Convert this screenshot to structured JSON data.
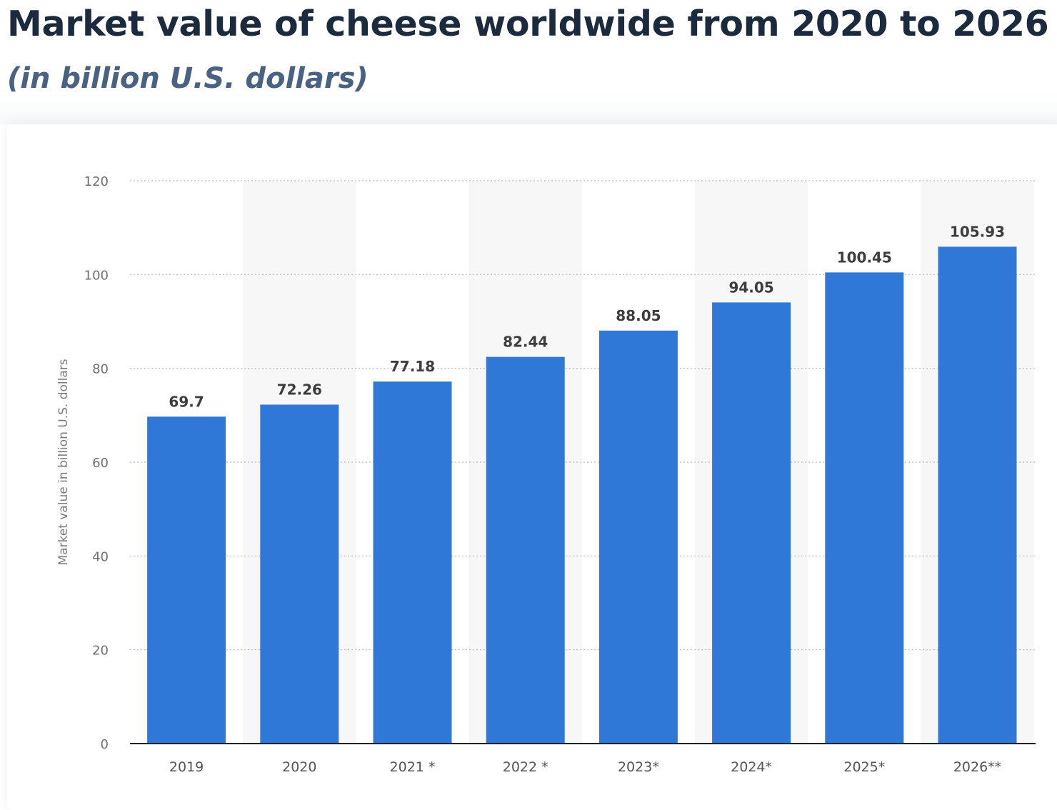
{
  "header": {
    "title": "Market value of cheese worldwide from 2020 to 2026",
    "subtitle": "(in billion U.S. dollars)"
  },
  "chart_data": {
    "type": "bar",
    "categories": [
      "2019",
      "2020",
      "2021 *",
      "2022 *",
      "2023*",
      "2024*",
      "2025*",
      "2026**"
    ],
    "values": [
      69.7,
      72.26,
      77.18,
      82.44,
      88.05,
      94.05,
      100.45,
      105.93
    ],
    "value_labels": [
      "69.7",
      "72.26",
      "77.18",
      "82.44",
      "88.05",
      "94.05",
      "100.45",
      "105.93"
    ],
    "title": "Market value of cheese worldwide from 2020 to 2026",
    "subtitle": "(in billion U.S. dollars)",
    "xlabel": "",
    "ylabel": "Market value in billion U.S. dollars",
    "ylim": [
      0,
      120
    ],
    "yticks": [
      0,
      20,
      40,
      60,
      80,
      100,
      120
    ],
    "ytick_labels": [
      "0",
      "20",
      "40",
      "60",
      "80",
      "100",
      "120"
    ],
    "grid": true,
    "bar_color": "#2f78d8",
    "alternate_band_color": "#f7f7f8"
  }
}
